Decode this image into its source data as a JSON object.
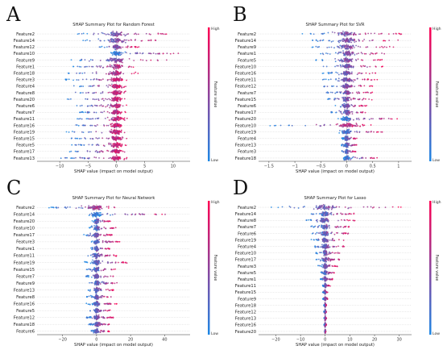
{
  "colorbar": {
    "high": "High",
    "low": "Low",
    "title": "Feature value",
    "color_low": "#1e88e5",
    "color_high": "#ff0052"
  },
  "chart_data": [
    {
      "panel": "A",
      "type": "scatter",
      "title": "SHAP Summary Plot for Random Forest",
      "xlabel": "SHAP value (impact on model output)",
      "xticks": [
        -10,
        -5,
        0,
        5,
        10
      ],
      "xlim": [
        -14,
        13
      ],
      "features": [
        "Feature2",
        "Feature14",
        "Feature12",
        "Feature10",
        "Feature9",
        "Feature1",
        "Feature18",
        "Feature3",
        "Feature4",
        "Feature8",
        "Feature20",
        "Feature6",
        "Feature7",
        "Feature11",
        "Feature16",
        "Feature19",
        "Feature15",
        "Feature5",
        "Feature17",
        "Feature13"
      ],
      "ranges": [
        [
          -7,
          9
        ],
        [
          -6,
          8
        ],
        [
          -3,
          4
        ],
        [
          -1,
          11
        ],
        [
          -8,
          9
        ],
        [
          -8,
          3
        ],
        [
          -9,
          4
        ],
        [
          -9,
          2
        ],
        [
          -8,
          2
        ],
        [
          -8,
          2
        ],
        [
          -9,
          2
        ],
        [
          -7,
          2
        ],
        [
          -7,
          2
        ],
        [
          -7,
          2
        ],
        [
          -8,
          2
        ],
        [
          -9,
          2
        ],
        [
          -8,
          2
        ],
        [
          -8,
          2
        ],
        [
          -9,
          2
        ],
        [
          -10,
          2
        ]
      ]
    },
    {
      "panel": "B",
      "type": "scatter",
      "title": "SHAP Summary Plot for SVR",
      "xlabel": "SHAP value (impact on model output)",
      "xticks": [
        -1.5,
        -1.0,
        -0.5,
        0.0,
        0.5,
        1.0
      ],
      "xlim": [
        -1.7,
        1.25
      ],
      "features": [
        "Feature2",
        "Feature14",
        "Feature9",
        "Feature1",
        "Feature5",
        "Feature10",
        "Feature16",
        "Feature11",
        "Feature12",
        "Feature7",
        "Feature15",
        "Feature6",
        "Feature17",
        "Feature20",
        "Feature10",
        "Feature19",
        "Feature4",
        "Feature13",
        "Feature3",
        "Feature18"
      ],
      "ranges": [
        [
          -0.9,
          1.1
        ],
        [
          -0.8,
          1.0
        ],
        [
          -0.7,
          0.9
        ],
        [
          -0.6,
          0.8
        ],
        [
          -0.6,
          0.7
        ],
        [
          -0.5,
          0.7
        ],
        [
          -0.5,
          0.6
        ],
        [
          -0.5,
          0.6
        ],
        [
          -0.5,
          0.5
        ],
        [
          -0.4,
          0.5
        ],
        [
          -0.4,
          0.5
        ],
        [
          -0.3,
          0.4
        ],
        [
          -0.3,
          0.4
        ],
        [
          -0.2,
          1.0
        ],
        [
          -1.5,
          0.5
        ],
        [
          -0.2,
          0.7
        ],
        [
          -0.1,
          0.2
        ],
        [
          -0.1,
          0.2
        ],
        [
          -0.1,
          0.2
        ],
        [
          -0.1,
          0.6
        ]
      ]
    },
    {
      "panel": "C",
      "type": "scatter",
      "title": "SHAP Summary Plot for Neural Network",
      "xlabel": "SHAP value (impact on model output)",
      "xticks": [
        -20,
        0,
        20,
        40
      ],
      "xlim": [
        -35,
        55
      ],
      "features": [
        "Feature2",
        "Feature14",
        "Feature20",
        "Feature10",
        "Feature17",
        "Feature3",
        "Feature1",
        "Feature11",
        "Feature19",
        "Feature15",
        "Feature7",
        "Feature9",
        "Feature13",
        "Feature8",
        "Feature16",
        "Feature5",
        "Feature12",
        "Feature18",
        "Feature6"
      ],
      "ranges": [
        [
          -28,
          15
        ],
        [
          -5,
          45
        ],
        [
          -3,
          8
        ],
        [
          -5,
          12
        ],
        [
          -8,
          10
        ],
        [
          -5,
          14
        ],
        [
          -4,
          8
        ],
        [
          -6,
          12
        ],
        [
          -7,
          18
        ],
        [
          -6,
          12
        ],
        [
          -7,
          10
        ],
        [
          -5,
          12
        ],
        [
          -5,
          10
        ],
        [
          -6,
          10
        ],
        [
          -6,
          12
        ],
        [
          -4,
          8
        ],
        [
          -6,
          10
        ],
        [
          -5,
          8
        ],
        [
          -4,
          8
        ]
      ]
    },
    {
      "panel": "D",
      "type": "scatter",
      "title": "SHAP Summary Plot for Lasso",
      "xlabel": "SHAP value (impact on model output)",
      "xticks": [
        -20,
        -10,
        0,
        10,
        20,
        30
      ],
      "xlim": [
        -27,
        35
      ],
      "features": [
        "Feature2",
        "Feature14",
        "Feature8",
        "Feature7",
        "Feature6",
        "Feature19",
        "Feature4",
        "Feature10",
        "Feature17",
        "Feature3",
        "Feature5",
        "Feature1",
        "Feature11",
        "Feature15",
        "Feature9",
        "Feature18",
        "Feature12",
        "Feature13",
        "Feature16",
        "Feature20"
      ],
      "ranges": [
        [
          -25,
          32
        ],
        [
          -6,
          14
        ],
        [
          -8,
          12
        ],
        [
          -6,
          10
        ],
        [
          -6,
          10
        ],
        [
          -6,
          8
        ],
        [
          -5,
          9
        ],
        [
          -4,
          6
        ],
        [
          -4,
          6
        ],
        [
          -3,
          5
        ],
        [
          -2,
          4
        ],
        [
          -2,
          3
        ],
        [
          -1,
          2
        ],
        [
          -1,
          1
        ],
        [
          -1,
          1
        ],
        [
          -0.5,
          0.5
        ],
        [
          -0.5,
          0.5
        ],
        [
          -0.5,
          0.5
        ],
        [
          -0.5,
          0.5
        ],
        [
          -0.2,
          0.2
        ]
      ]
    }
  ]
}
